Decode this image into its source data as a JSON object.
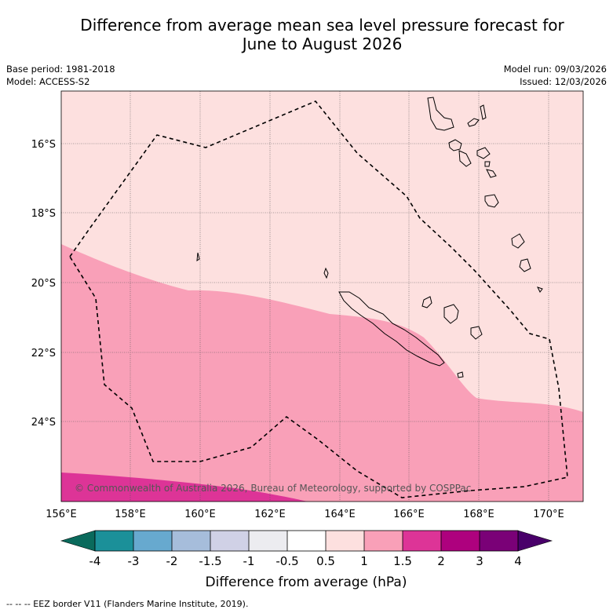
{
  "title": {
    "line1": "Difference from average mean sea level pressure forecast for",
    "line2": "June to August 2026"
  },
  "meta": {
    "base_period": "Base period: 1981-2018",
    "model": "Model: ACCESS-S2",
    "model_run": "Model run: 09/03/2026",
    "issued": "Issued: 12/03/2026"
  },
  "map": {
    "lon_labels": [
      "156°E",
      "158°E",
      "160°E",
      "162°E",
      "164°E",
      "166°E",
      "168°E",
      "170°E"
    ],
    "lat_labels": [
      "16°S",
      "18°S",
      "20°S",
      "22°S",
      "24°S"
    ],
    "copyright": "© Commonwealth of Australia 2026, Bureau of Meteorology, supported by COSPPac",
    "colors": {
      "band_0_5_1": "#fde0df",
      "band_1_1_5": "#f9a0b8",
      "band_1_5_2": "#dd3497"
    }
  },
  "colorbar": {
    "label": "Difference from average (hPa)",
    "ticks": [
      "-4",
      "-3",
      "-2",
      "-1.5",
      "-1",
      "-0.5",
      "0.5",
      "1",
      "1.5",
      "2",
      "3",
      "4"
    ],
    "colors": [
      "#0a6a5c",
      "#1b9099",
      "#67a9cf",
      "#a6bddb",
      "#d0d1e6",
      "#ececf0",
      "#ffffff",
      "#fde0df",
      "#f9a0b8",
      "#dd3497",
      "#ae017e",
      "#7a0177",
      "#49006a"
    ]
  },
  "footnote": "--  --  -- EEZ border V11 (Flanders Marine Institute, 2019)."
}
